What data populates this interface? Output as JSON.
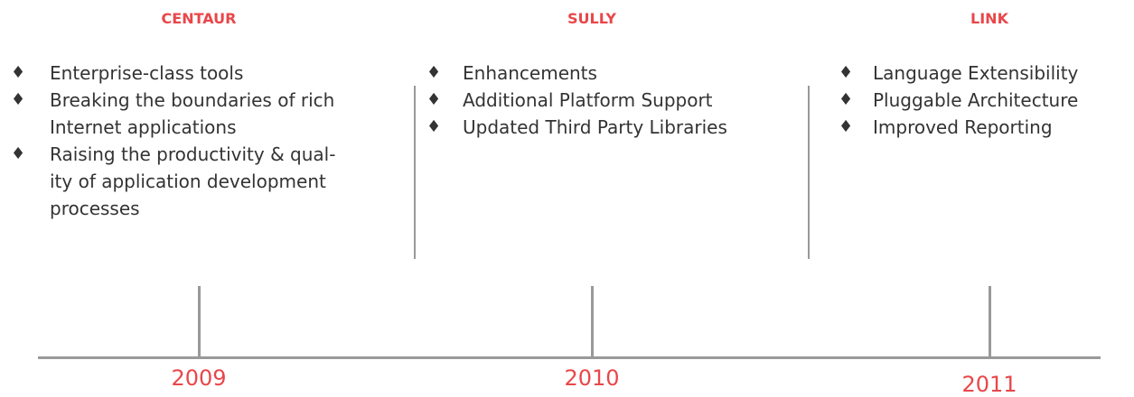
{
  "columns": [
    {
      "title": "CENTAUR",
      "year": "2009",
      "items": [
        [
          "Enterprise-class tools"
        ],
        [
          "Breaking the boundaries of rich",
          "Internet applications"
        ],
        [
          "Raising the productivity & qual-",
          "ity of application development",
          "processes"
        ]
      ]
    },
    {
      "title": "SULLY",
      "year": "2010",
      "items": [
        [
          "Enhancements"
        ],
        [
          "Additional Platform Support"
        ],
        [
          "Updated Third Party Libraries"
        ]
      ]
    },
    {
      "title": "LINK",
      "year": "2011",
      "items": [
        [
          "Language Extensibility"
        ],
        [
          "Pluggable Architecture"
        ],
        [
          "Improved Reporting"
        ]
      ]
    }
  ]
}
